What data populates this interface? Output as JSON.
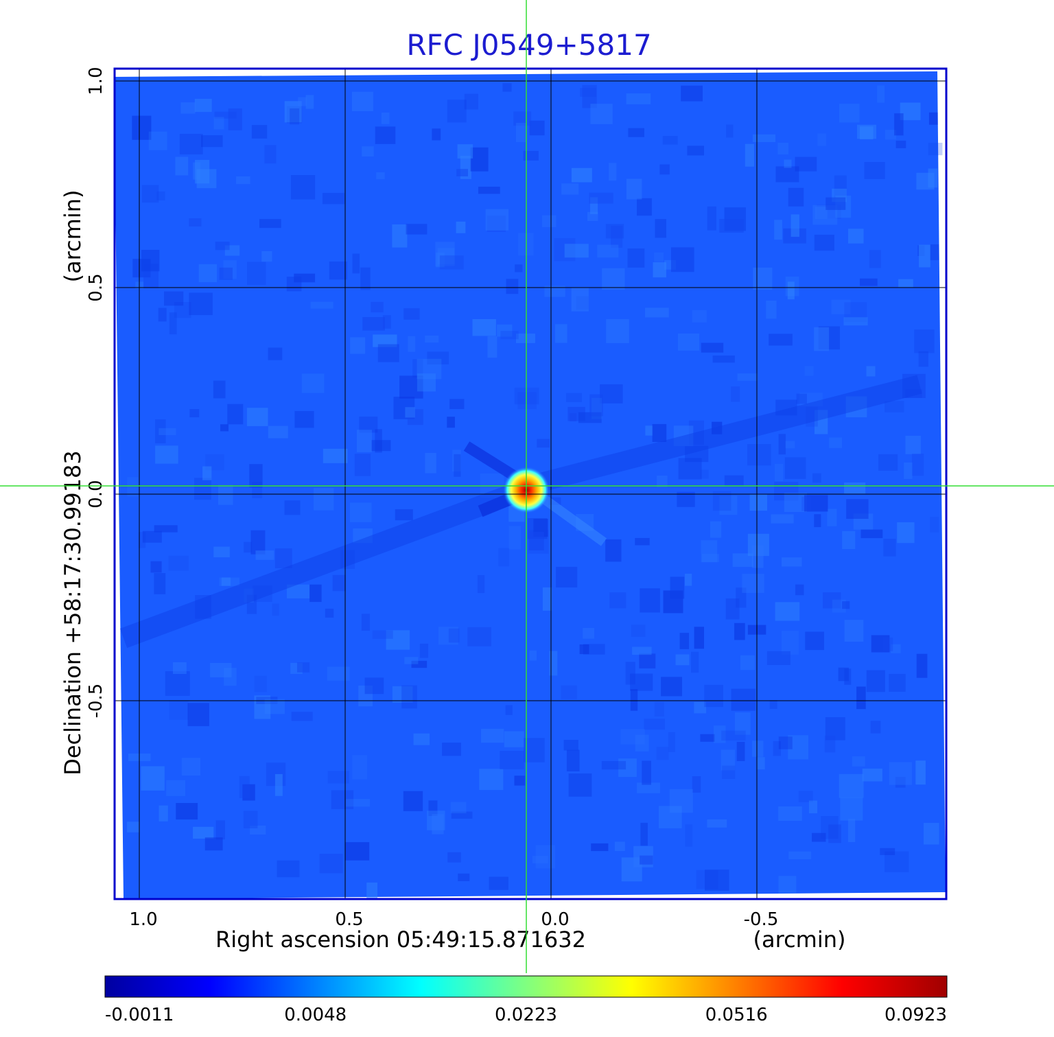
{
  "chart_data": {
    "type": "heatmap",
    "title": "RFC J0549+5817",
    "xlabel": "Right ascension  05:49:15.871632",
    "xunit": "(arcmin)",
    "ylabel": "Declination  +58:17:30.99183",
    "yunit": "(arcmin)",
    "xlim": [
      1.06,
      -0.96
    ],
    "ylim": [
      -0.98,
      1.03
    ],
    "xaxis_reversed": true,
    "x_ticks": [
      {
        "value": 1.0,
        "label": "1.0"
      },
      {
        "value": 0.5,
        "label": "0.5"
      },
      {
        "value": 0.0,
        "label": "0.0"
      },
      {
        "value": -0.5,
        "label": "-0.5"
      }
    ],
    "y_ticks": [
      {
        "value": 1.0,
        "label": "1.0"
      },
      {
        "value": 0.5,
        "label": "0.5"
      },
      {
        "value": 0.0,
        "label": "0.0"
      },
      {
        "value": -0.5,
        "label": "-0.5"
      }
    ],
    "grid": true,
    "crosshair": {
      "x": 0.06,
      "y": 0.02,
      "color": "#33dd33"
    },
    "peak": {
      "x": 0.06,
      "y": 0.01,
      "value": 0.0923
    },
    "background_level": 0.0005,
    "colorbar": {
      "orientation": "horizontal",
      "tick_labels": [
        "-0.0011",
        "0.0048",
        "0.0223",
        "0.0516",
        "0.0923"
      ],
      "colors": [
        "#0000a0",
        "#0000ff",
        "#0080ff",
        "#00ffff",
        "#80ff80",
        "#ffff00",
        "#ff8000",
        "#ff0000",
        "#a00000"
      ]
    },
    "colors": {
      "title": "#1c1cd0",
      "frame": "#0000cc",
      "grid": "#000000"
    }
  }
}
